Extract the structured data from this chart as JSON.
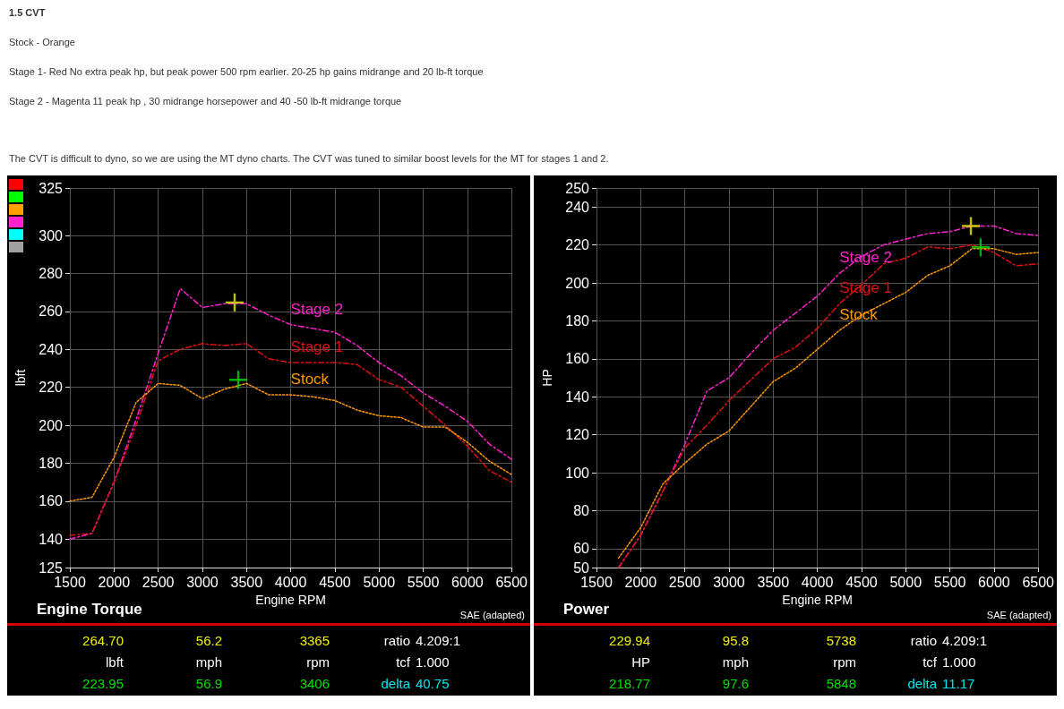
{
  "chart_data": [
    {
      "type": "line",
      "title": "Engine Torque",
      "xlabel": "Engine RPM",
      "ylabel": "lbft",
      "x": [
        1500,
        1750,
        2000,
        2250,
        2500,
        2750,
        3000,
        3250,
        3500,
        3750,
        4000,
        4250,
        4500,
        4750,
        5000,
        5250,
        5500,
        5750,
        6000,
        6250,
        6500
      ],
      "series": [
        {
          "name": "Stage 2",
          "color": "#ff22cc",
          "line_style": "dashed",
          "values": [
            140,
            143,
            170,
            203,
            238,
            272,
            262,
            264,
            264,
            258,
            253,
            251,
            249,
            242,
            233,
            226,
            217,
            210,
            202,
            190,
            182
          ]
        },
        {
          "name": "Stage 1",
          "color": "#e01010",
          "line_style": "dashed",
          "values": [
            142,
            143,
            170,
            200,
            234,
            240,
            243,
            242,
            243,
            235,
            233,
            233,
            233,
            232,
            224,
            220,
            210,
            200,
            189,
            176,
            170
          ]
        },
        {
          "name": "Stock",
          "color": "#ff9900",
          "line_style": "dotted",
          "values": [
            160,
            162,
            183,
            212,
            222,
            221,
            214,
            219,
            222,
            216,
            216,
            215,
            213,
            208,
            205,
            204,
            199,
            199,
            191,
            181,
            174
          ]
        },
        {
          "type": "scatter",
          "marker": "cross",
          "color": "#f0f000",
          "x": [
            3365
          ],
          "values": [
            264.7
          ]
        },
        {
          "type": "scatter",
          "marker": "cross",
          "color": "#00e000",
          "x": [
            3406
          ],
          "values": [
            223.95
          ]
        }
      ],
      "xlim": [
        1500,
        6500
      ],
      "xticks": [
        1500,
        2000,
        2500,
        3000,
        3500,
        4000,
        4500,
        5000,
        5500,
        6000,
        6500
      ],
      "ylim": [
        125,
        325
      ],
      "yticks": [
        125,
        140,
        160,
        180,
        200,
        220,
        240,
        260,
        280,
        300,
        325
      ],
      "grid": true,
      "legend": false,
      "marker": "none",
      "annotations": [
        "SAE (adapted)",
        "264.70",
        "56.2",
        "3365",
        "ratio",
        "4.209:1",
        "lbft",
        "mph",
        "rpm",
        "tcf",
        "1.000",
        "223.95",
        "56.9",
        "3406",
        "delta",
        "40.75",
        "1.5 CVT",
        "Stock - Orange",
        "Stage 1- Red  No extra peak hp, but peak power 500 rpm earlier.  20-25 hp gains midrange and 20 lb-ft torque",
        "Stage 2 - Magenta 11 peak hp , 30 midrange horsepower and 40 -50 lb-ft midrange torque",
        "The CVT is difficult to dyno, so we are using the MT dyno charts. The CVT was tuned to similar boost levels for the MT for stages 1 and 2."
      ]
    },
    {
      "type": "line",
      "title": "Power",
      "xlabel": "Engine RPM",
      "ylabel": "HP",
      "x": [
        1750,
        2000,
        2250,
        2500,
        2750,
        3000,
        3250,
        3500,
        3750,
        4000,
        4250,
        4500,
        4750,
        5000,
        5250,
        5500,
        5750,
        6000,
        6250,
        6500
      ],
      "series": [
        {
          "name": "Stage 2",
          "color": "#ff22cc",
          "line_style": "dashed",
          "values": [
            50,
            67,
            90,
            115,
            143,
            150,
            163,
            175,
            184,
            193,
            205,
            214,
            220,
            223,
            226,
            227,
            230,
            230,
            226,
            225
          ]
        },
        {
          "name": "Stage 1",
          "color": "#e01010",
          "line_style": "dashed",
          "values": [
            50,
            67,
            90,
            113,
            125,
            138,
            149,
            160,
            166,
            176,
            189,
            199,
            210,
            213,
            219,
            218,
            220,
            216,
            209,
            210
          ]
        },
        {
          "name": "Stock",
          "color": "#ff9900",
          "line_style": "dotted",
          "values": [
            55,
            71,
            94,
            105,
            115,
            122,
            135,
            148,
            155,
            165,
            175,
            183,
            189,
            195,
            204,
            209,
            218,
            218,
            215,
            216
          ]
        },
        {
          "type": "scatter",
          "marker": "cross",
          "color": "#f0f000",
          "x": [
            5738
          ],
          "values": [
            229.94
          ]
        },
        {
          "type": "scatter",
          "marker": "cross",
          "color": "#00e000",
          "x": [
            5848
          ],
          "values": [
            218.77
          ]
        }
      ],
      "xlim": [
        1500,
        6500
      ],
      "xticks": [
        1500,
        2000,
        2500,
        3000,
        3500,
        4000,
        4500,
        5000,
        5500,
        6000,
        6500
      ],
      "ylim": [
        50,
        250
      ],
      "yticks": [
        50,
        60,
        80,
        100,
        120,
        140,
        160,
        180,
        200,
        220,
        240,
        250
      ],
      "grid": true,
      "legend": false,
      "marker": "none",
      "annotations": [
        "SAE (adapted)",
        "229.94",
        "95.8",
        "5738",
        "ratio",
        "4.209:1",
        "HP",
        "mph",
        "rpm",
        "tcf",
        "1.000",
        "218.77",
        "97.6",
        "5848",
        "delta",
        "11.17"
      ]
    }
  ]
}
